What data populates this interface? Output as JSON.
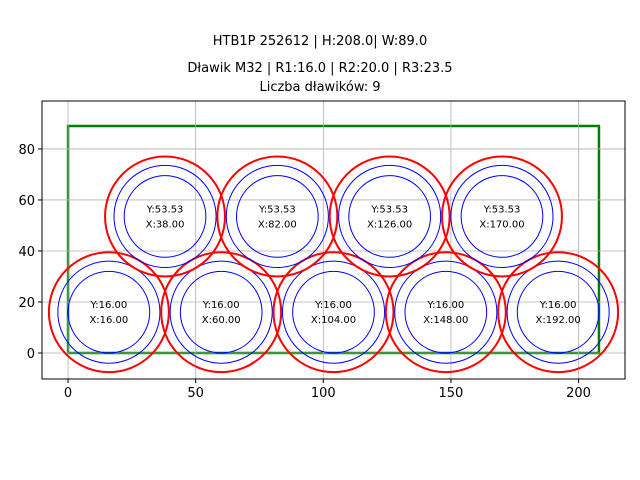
{
  "chart_data": {
    "type": "scatter",
    "title_lines": [
      "HTB1P 252612 | H:208.0| W:89.0",
      "Dławik M32 | R1:16.0 | R2:20.0 | R3:23.5",
      "Liczba dławików: 9"
    ],
    "xlabel": "",
    "ylabel": "",
    "xlim": [
      -10.2,
      218.2
    ],
    "ylim": [
      -10.2,
      98.8
    ],
    "xticks": [
      0,
      50,
      100,
      150,
      200
    ],
    "yticks": [
      0,
      20,
      40,
      60,
      80
    ],
    "grid": true,
    "aspect": "equal",
    "rectangle": {
      "x0": 0,
      "y0": 0,
      "x1": 208,
      "y1": 89,
      "color": "#008000"
    },
    "radii": {
      "r1": 16.0,
      "r2": 20.0,
      "r3": 23.5
    },
    "colors": {
      "inner": "#0000ff",
      "outer": "#ff0000"
    },
    "glands": [
      {
        "x": 16,
        "y": 16,
        "xlabel": "X:16.00",
        "ylabel": "Y:16.00"
      },
      {
        "x": 60,
        "y": 16,
        "xlabel": "X:60.00",
        "ylabel": "Y:16.00"
      },
      {
        "x": 104,
        "y": 16,
        "xlabel": "X:104.00",
        "ylabel": "Y:16.00"
      },
      {
        "x": 148,
        "y": 16,
        "xlabel": "X:148.00",
        "ylabel": "Y:16.00"
      },
      {
        "x": 192,
        "y": 16,
        "xlabel": "X:192.00",
        "ylabel": "Y:16.00"
      },
      {
        "x": 38,
        "y": 53.53,
        "xlabel": "X:38.00",
        "ylabel": "Y:53.53"
      },
      {
        "x": 82,
        "y": 53.53,
        "xlabel": "X:82.00",
        "ylabel": "Y:53.53"
      },
      {
        "x": 126,
        "y": 53.53,
        "xlabel": "X:126.00",
        "ylabel": "Y:53.53"
      },
      {
        "x": 170,
        "y": 53.53,
        "xlabel": "X:170.00",
        "ylabel": "Y:53.53"
      }
    ]
  }
}
